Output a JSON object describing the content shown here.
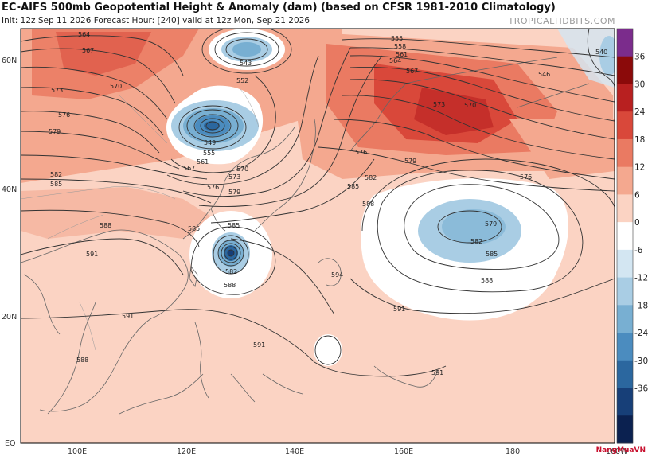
{
  "header": {
    "title": "EC-AIFS 500mb Geopotential Height & Anomaly (dam) (based on CFSR 1981-2010 Climatology)",
    "subtitle": "Init: 12z Sep 11 2026   Forecast Hour: [240]   valid at 12z Mon, Sep 21 2026",
    "brand": "TROPICALTIDBITS.COM"
  },
  "axes": {
    "lat_labels": [
      "60N",
      "40N",
      "20N",
      "EQ"
    ],
    "lon_labels": [
      "100E",
      "120E",
      "140E",
      "160E",
      "180",
      "160W"
    ]
  },
  "colorbar": {
    "labels": [
      "36",
      "30",
      "24",
      "18",
      "12",
      "6",
      "0",
      "-6",
      "-12",
      "-18",
      "-24",
      "-30",
      "-36"
    ],
    "colors": [
      "#7b2c8c",
      "#8b0a0a",
      "#b82020",
      "#d9483a",
      "#ea7a62",
      "#f4a88f",
      "#fbd3c3",
      "#ffffff",
      "#d3e6f2",
      "#a9cde4",
      "#78afd2",
      "#4b8cbf",
      "#2b679f",
      "#173f78",
      "#0b2150"
    ]
  },
  "contour_labels": [
    {
      "text": "564"
    },
    {
      "text": "567"
    },
    {
      "text": "570"
    },
    {
      "text": "573"
    },
    {
      "text": "576"
    },
    {
      "text": "579"
    },
    {
      "text": "582"
    },
    {
      "text": "585"
    },
    {
      "text": "588"
    },
    {
      "text": "591"
    },
    {
      "text": "543"
    },
    {
      "text": "552"
    },
    {
      "text": "549"
    },
    {
      "text": "555"
    },
    {
      "text": "561"
    },
    {
      "text": "567"
    },
    {
      "text": "570"
    },
    {
      "text": "573"
    },
    {
      "text": "576"
    },
    {
      "text": "579"
    },
    {
      "text": "585"
    },
    {
      "text": "582"
    },
    {
      "text": "588"
    },
    {
      "text": "585"
    },
    {
      "text": "555"
    },
    {
      "text": "558"
    },
    {
      "text": "561"
    },
    {
      "text": "564"
    },
    {
      "text": "567"
    },
    {
      "text": "573"
    },
    {
      "text": "570"
    },
    {
      "text": "576"
    },
    {
      "text": "579"
    },
    {
      "text": "576"
    },
    {
      "text": "582"
    },
    {
      "text": "585"
    },
    {
      "text": "588"
    },
    {
      "text": "579"
    },
    {
      "text": "582"
    },
    {
      "text": "585"
    },
    {
      "text": "588"
    },
    {
      "text": "546"
    },
    {
      "text": "540"
    },
    {
      "text": "594"
    },
    {
      "text": "591"
    },
    {
      "text": "591"
    },
    {
      "text": "591"
    },
    {
      "text": "591"
    },
    {
      "text": "588"
    }
  ],
  "watermark": "NangMuaVN"
}
